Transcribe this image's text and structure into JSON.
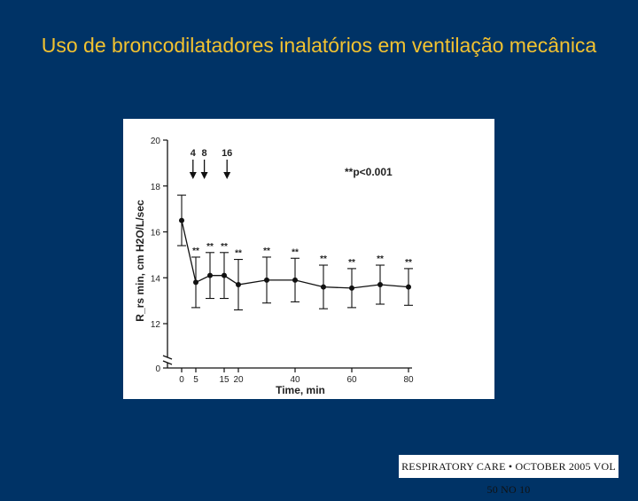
{
  "slide": {
    "title": "Uso de broncodilatadores inalatórios em ventilação mecânica",
    "background_color": "#003366",
    "title_color": "#f2c230"
  },
  "citation": "RESPIRATORY CARE • OCTOBER 2005 VOL 50 NO 10",
  "chart_data": {
    "type": "line",
    "ylabel": "R_rs min, cm H2O/L/sec",
    "xlabel": "Time, min",
    "x": [
      0,
      5,
      10,
      15,
      20,
      30,
      40,
      50,
      60,
      70,
      80
    ],
    "y": [
      16.5,
      13.8,
      14.1,
      14.1,
      13.7,
      13.9,
      13.9,
      13.6,
      13.55,
      13.7,
      13.6
    ],
    "y_err": [
      1.1,
      1.1,
      1.0,
      1.0,
      1.1,
      1.0,
      0.95,
      0.95,
      0.85,
      0.85,
      0.8
    ],
    "significance_marks": [
      "",
      "**",
      "**",
      "**",
      "**",
      "**",
      "**",
      "**",
      "**",
      "**",
      "**"
    ],
    "x_ticks": [
      0,
      5,
      15,
      20,
      40,
      60,
      80
    ],
    "y_ticks": [
      0,
      12,
      14,
      16,
      18,
      20
    ],
    "ylim": [
      12,
      20
    ],
    "axis_break": true,
    "arrows": [
      {
        "x": 4,
        "label": "4"
      },
      {
        "x": 8,
        "label": "8"
      },
      {
        "x": 16,
        "label": "16"
      }
    ],
    "annotation": "**p<0.001",
    "grid": false,
    "line_color": "#111111"
  }
}
